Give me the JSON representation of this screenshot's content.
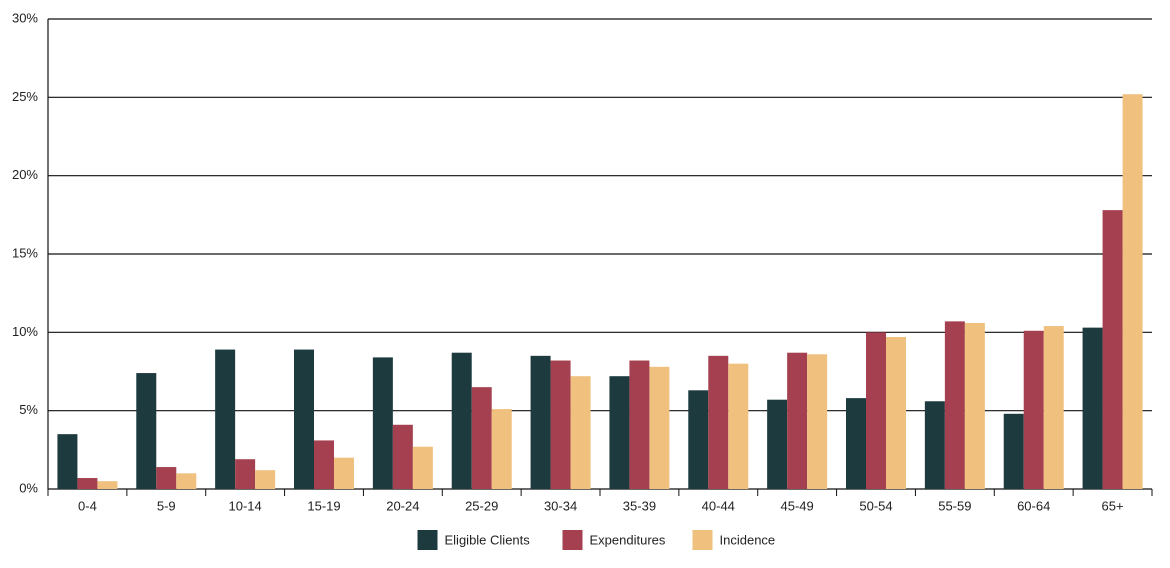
{
  "chart_data": {
    "type": "bar",
    "categories": [
      "0-4",
      "5-9",
      "10-14",
      "15-19",
      "20-24",
      "25-29",
      "30-34",
      "35-39",
      "40-44",
      "45-49",
      "50-54",
      "55-59",
      "60-64",
      "65+"
    ],
    "series": [
      {
        "name": "Eligible Clients",
        "color": "#1d3a3f",
        "values": [
          3.5,
          7.4,
          8.9,
          8.9,
          8.4,
          8.7,
          8.5,
          7.2,
          6.3,
          5.7,
          5.8,
          5.6,
          4.8,
          10.3
        ]
      },
      {
        "name": "Expenditures",
        "color": "#a4404f",
        "values": [
          0.7,
          1.4,
          1.9,
          3.1,
          4.1,
          6.5,
          8.2,
          8.2,
          8.5,
          8.7,
          10.0,
          10.7,
          10.1,
          17.8
        ]
      },
      {
        "name": "Incidence",
        "color": "#efc07e",
        "values": [
          0.5,
          1.0,
          1.2,
          2.0,
          2.7,
          5.1,
          7.2,
          7.8,
          8.0,
          8.6,
          9.7,
          10.6,
          10.4,
          25.2
        ]
      }
    ],
    "ylim": [
      0,
      30
    ],
    "yticks": [
      {
        "value": 0,
        "label": "0%"
      },
      {
        "value": 5,
        "label": "5%"
      },
      {
        "value": 10,
        "label": "10%"
      },
      {
        "value": 15,
        "label": "15%"
      },
      {
        "value": 20,
        "label": "20%"
      },
      {
        "value": 25,
        "label": "25%"
      },
      {
        "value": 30,
        "label": "30%"
      }
    ],
    "grid": true,
    "legend": "bottom"
  }
}
